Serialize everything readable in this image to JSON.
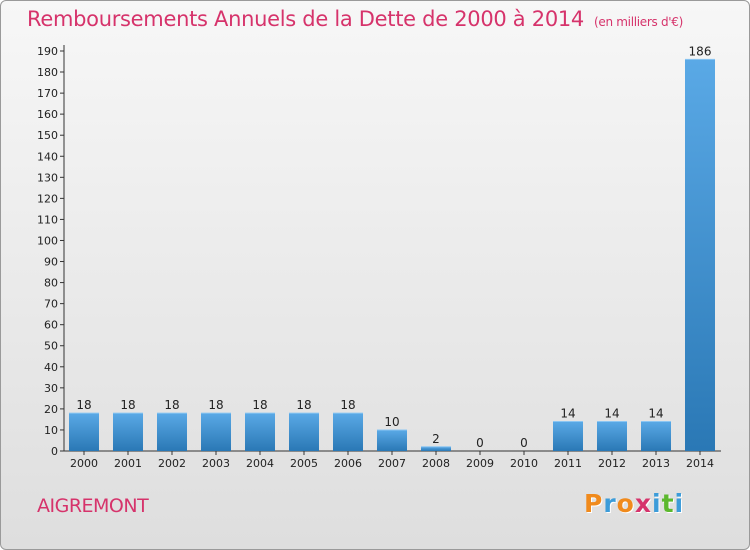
{
  "title": "Remboursements Annuels de la Dette de 2000 à 2014",
  "unit": "(en milliers d'€)",
  "town": "AIGREMONT",
  "logo": {
    "letters": [
      "P",
      "r",
      "o",
      "x",
      "i",
      "t",
      "i"
    ],
    "colors": [
      "#f08a1c",
      "#3c9cd9",
      "#f08a1c",
      "#d6336b",
      "#3c9cd9",
      "#5cb82e",
      "#3c9cd9"
    ]
  },
  "colors": {
    "accent": "#d6336b",
    "bar_light": "#5aa9e6",
    "bar_dark": "#2a78b5"
  },
  "chart_data": {
    "type": "bar",
    "title": "Remboursements Annuels de la Dette de 2000 à 2014",
    "xlabel": "",
    "ylabel": "",
    "categories": [
      "2000",
      "2001",
      "2002",
      "2003",
      "2004",
      "2005",
      "2006",
      "2007",
      "2008",
      "2009",
      "2010",
      "2011",
      "2012",
      "2013",
      "2014"
    ],
    "values": [
      18,
      18,
      18,
      18,
      18,
      18,
      18,
      10,
      2,
      0,
      0,
      14,
      14,
      14,
      186
    ],
    "ylim": [
      0,
      190
    ],
    "yticks": [
      0,
      10,
      20,
      30,
      40,
      50,
      60,
      70,
      80,
      90,
      100,
      110,
      120,
      130,
      140,
      150,
      160,
      170,
      180,
      190
    ],
    "grid": false
  }
}
